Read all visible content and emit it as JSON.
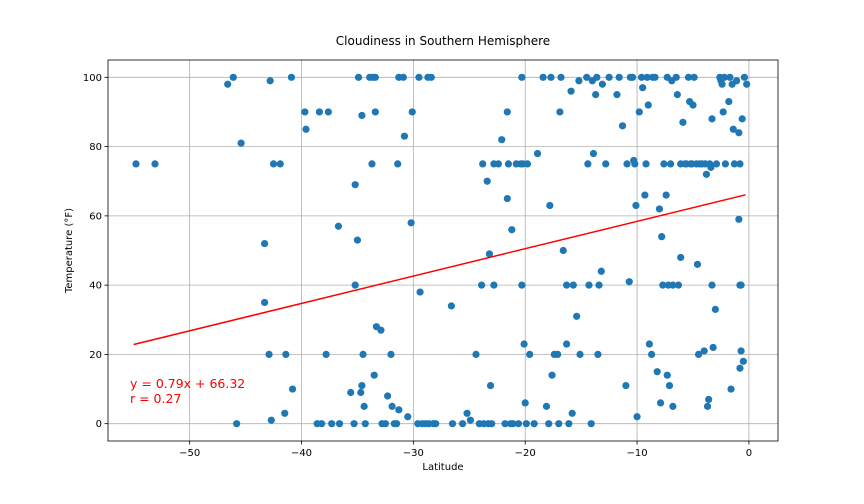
{
  "chart_data": {
    "type": "scatter",
    "title": "Cloudiness in Southern Hemisphere",
    "xlabel": "Latitude",
    "ylabel": "Temperature (°F)",
    "xlim": [
      -57.3,
      2.6
    ],
    "ylim": [
      -5,
      105
    ],
    "xticks": [
      -50,
      -40,
      -30,
      -20,
      -10,
      0
    ],
    "xtick_labels": [
      "−50",
      "−40",
      "−30",
      "−20",
      "−10",
      "0"
    ],
    "yticks": [
      0,
      20,
      40,
      60,
      80,
      100
    ],
    "ytick_labels": [
      "0",
      "20",
      "40",
      "60",
      "80",
      "100"
    ],
    "grid": true,
    "point_color": "#1f77b4",
    "regression": {
      "slope": 0.79,
      "intercept": 66.32,
      "x_range": [
        -55.0,
        -0.3
      ],
      "color": "#ff0000",
      "equation_label": "y = 0.79x + 66.32",
      "r_label": "r = 0.27"
    },
    "points": [
      [
        -54.8,
        75
      ],
      [
        -53.1,
        75
      ],
      [
        -46.6,
        98
      ],
      [
        -46.1,
        100
      ],
      [
        -45.8,
        0
      ],
      [
        -45.4,
        81
      ],
      [
        -43.3,
        52
      ],
      [
        -43.3,
        35
      ],
      [
        -42.9,
        20
      ],
      [
        -42.8,
        99
      ],
      [
        -42.7,
        1
      ],
      [
        -42.5,
        75
      ],
      [
        -41.9,
        75
      ],
      [
        -41.5,
        3
      ],
      [
        -41.4,
        20
      ],
      [
        -40.9,
        100
      ],
      [
        -40.8,
        10
      ],
      [
        -39.7,
        90
      ],
      [
        -39.6,
        85
      ],
      [
        -38.6,
        0
      ],
      [
        -38.4,
        90
      ],
      [
        -38.2,
        0
      ],
      [
        -37.8,
        20
      ],
      [
        -37.6,
        90
      ],
      [
        -37.3,
        0
      ],
      [
        -36.6,
        0
      ],
      [
        -36.7,
        57
      ],
      [
        -35.6,
        9
      ],
      [
        -35.3,
        0
      ],
      [
        -35.2,
        40
      ],
      [
        -35.2,
        69
      ],
      [
        -35.0,
        53
      ],
      [
        -34.9,
        100
      ],
      [
        -34.7,
        9
      ],
      [
        -34.6,
        89
      ],
      [
        -34.6,
        11
      ],
      [
        -34.5,
        20
      ],
      [
        -34.4,
        5
      ],
      [
        -34.3,
        0
      ],
      [
        -33.9,
        100
      ],
      [
        -33.7,
        75
      ],
      [
        -33.6,
        100
      ],
      [
        -33.4,
        100
      ],
      [
        -33.5,
        14
      ],
      [
        -33.4,
        90
      ],
      [
        -33.3,
        28
      ],
      [
        -32.9,
        27
      ],
      [
        -32.8,
        0
      ],
      [
        -32.5,
        0
      ],
      [
        -32.3,
        8
      ],
      [
        -32.0,
        20
      ],
      [
        -31.9,
        5
      ],
      [
        -31.7,
        0
      ],
      [
        -31.5,
        0
      ],
      [
        -31.4,
        75
      ],
      [
        -31.3,
        4
      ],
      [
        -31.3,
        100
      ],
      [
        -30.9,
        100
      ],
      [
        -30.8,
        83
      ],
      [
        -30.5,
        2
      ],
      [
        -30.2,
        58
      ],
      [
        -30.1,
        90
      ],
      [
        -29.6,
        0
      ],
      [
        -29.5,
        100
      ],
      [
        -29.4,
        38
      ],
      [
        -29.2,
        0
      ],
      [
        -28.9,
        0
      ],
      [
        -28.7,
        100
      ],
      [
        -28.6,
        0
      ],
      [
        -28.4,
        100
      ],
      [
        -28.2,
        0
      ],
      [
        -28.0,
        0
      ],
      [
        -26.6,
        34
      ],
      [
        -26.5,
        0
      ],
      [
        -25.6,
        0
      ],
      [
        -25.2,
        3
      ],
      [
        -24.9,
        1
      ],
      [
        -24.4,
        20
      ],
      [
        -24.1,
        0
      ],
      [
        -23.9,
        40
      ],
      [
        -23.8,
        75
      ],
      [
        -23.7,
        0
      ],
      [
        -23.4,
        70
      ],
      [
        -23.3,
        0
      ],
      [
        -23.2,
        49
      ],
      [
        -23.1,
        11
      ],
      [
        -23.0,
        0
      ],
      [
        -22.8,
        40
      ],
      [
        -22.8,
        75
      ],
      [
        -22.4,
        75
      ],
      [
        -22.1,
        82
      ],
      [
        -21.8,
        0
      ],
      [
        -21.6,
        65
      ],
      [
        -21.6,
        90
      ],
      [
        -21.5,
        75
      ],
      [
        -21.3,
        0
      ],
      [
        -21.2,
        56
      ],
      [
        -21.1,
        0
      ],
      [
        -20.8,
        75
      ],
      [
        -20.6,
        0
      ],
      [
        -20.4,
        75
      ],
      [
        -20.3,
        100
      ],
      [
        -20.3,
        40
      ],
      [
        -20.2,
        75
      ],
      [
        -20.1,
        23
      ],
      [
        -20.0,
        6
      ],
      [
        -19.9,
        0
      ],
      [
        -19.8,
        75
      ],
      [
        -19.6,
        20
      ],
      [
        -19.2,
        0
      ],
      [
        -18.9,
        78
      ],
      [
        -18.4,
        100
      ],
      [
        -18.1,
        5
      ],
      [
        -17.9,
        0
      ],
      [
        -17.8,
        63
      ],
      [
        -17.7,
        100
      ],
      [
        -17.6,
        14
      ],
      [
        -17.4,
        20
      ],
      [
        -17.1,
        20
      ],
      [
        -17.0,
        0
      ],
      [
        -16.9,
        90
      ],
      [
        -16.8,
        100
      ],
      [
        -16.6,
        50
      ],
      [
        -16.3,
        23
      ],
      [
        -16.3,
        40
      ],
      [
        -16.1,
        0
      ],
      [
        -15.9,
        96
      ],
      [
        -15.8,
        3
      ],
      [
        -15.7,
        40
      ],
      [
        -15.4,
        31
      ],
      [
        -15.2,
        99
      ],
      [
        -15.1,
        20
      ],
      [
        -14.5,
        100
      ],
      [
        -14.4,
        75
      ],
      [
        -14.3,
        40
      ],
      [
        -14.1,
        0
      ],
      [
        -14.0,
        99
      ],
      [
        -13.9,
        78
      ],
      [
        -13.7,
        95
      ],
      [
        -13.6,
        100
      ],
      [
        -13.5,
        20
      ],
      [
        -13.4,
        40
      ],
      [
        -13.2,
        44
      ],
      [
        -13.1,
        98
      ],
      [
        -12.8,
        75
      ],
      [
        -12.5,
        100
      ],
      [
        -11.8,
        95
      ],
      [
        -11.6,
        100
      ],
      [
        -11.3,
        86
      ],
      [
        -11.0,
        11
      ],
      [
        -10.9,
        75
      ],
      [
        -10.7,
        41
      ],
      [
        -10.6,
        100
      ],
      [
        -10.4,
        100
      ],
      [
        -10.3,
        76
      ],
      [
        -10.2,
        75
      ],
      [
        -10.1,
        63
      ],
      [
        -10.0,
        2
      ],
      [
        -9.8,
        90
      ],
      [
        -9.6,
        100
      ],
      [
        -9.5,
        97
      ],
      [
        -9.3,
        66
      ],
      [
        -9.2,
        75
      ],
      [
        -9.1,
        100
      ],
      [
        -9.0,
        92
      ],
      [
        -8.9,
        23
      ],
      [
        -8.7,
        20
      ],
      [
        -8.6,
        100
      ],
      [
        -8.4,
        100
      ],
      [
        -8.2,
        15
      ],
      [
        -8.0,
        62
      ],
      [
        -7.9,
        6
      ],
      [
        -7.8,
        54
      ],
      [
        -7.7,
        40
      ],
      [
        -7.6,
        75
      ],
      [
        -7.4,
        66
      ],
      [
        -7.3,
        14
      ],
      [
        -7.3,
        100
      ],
      [
        -7.2,
        40
      ],
      [
        -7.1,
        11
      ],
      [
        -7.0,
        75
      ],
      [
        -6.9,
        99
      ],
      [
        -6.8,
        40
      ],
      [
        -6.8,
        5
      ],
      [
        -6.5,
        100
      ],
      [
        -6.4,
        95
      ],
      [
        -6.3,
        40
      ],
      [
        -6.1,
        48
      ],
      [
        -6.1,
        75
      ],
      [
        -5.9,
        87
      ],
      [
        -5.7,
        75
      ],
      [
        -5.6,
        75
      ],
      [
        -5.4,
        100
      ],
      [
        -5.3,
        93
      ],
      [
        -5.2,
        75
      ],
      [
        -5.1,
        75
      ],
      [
        -5.0,
        92
      ],
      [
        -4.9,
        100
      ],
      [
        -4.7,
        75
      ],
      [
        -4.6,
        46
      ],
      [
        -4.5,
        20
      ],
      [
        -4.4,
        75
      ],
      [
        -4.2,
        75
      ],
      [
        -4.0,
        21
      ],
      [
        -3.9,
        75
      ],
      [
        -3.8,
        72
      ],
      [
        -3.7,
        5
      ],
      [
        -3.6,
        7
      ],
      [
        -3.5,
        75
      ],
      [
        -3.4,
        74
      ],
      [
        -3.3,
        40
      ],
      [
        -3.3,
        88
      ],
      [
        -3.2,
        22
      ],
      [
        -3.0,
        33
      ],
      [
        -2.9,
        75
      ],
      [
        -2.6,
        100
      ],
      [
        -2.5,
        99
      ],
      [
        -2.4,
        98
      ],
      [
        -2.3,
        90
      ],
      [
        -2.2,
        100
      ],
      [
        -2.1,
        75
      ],
      [
        -1.8,
        93
      ],
      [
        -1.7,
        100
      ],
      [
        -1.6,
        10
      ],
      [
        -1.5,
        98
      ],
      [
        -1.4,
        85
      ],
      [
        -1.3,
        75
      ],
      [
        -1.1,
        99
      ],
      [
        -0.9,
        84
      ],
      [
        -0.9,
        59
      ],
      [
        -0.8,
        40
      ],
      [
        -0.8,
        75
      ],
      [
        -0.8,
        16
      ],
      [
        -0.7,
        21
      ],
      [
        -0.7,
        40
      ],
      [
        -0.6,
        88
      ],
      [
        -0.5,
        18
      ],
      [
        -0.4,
        100
      ],
      [
        -0.2,
        98
      ]
    ]
  }
}
